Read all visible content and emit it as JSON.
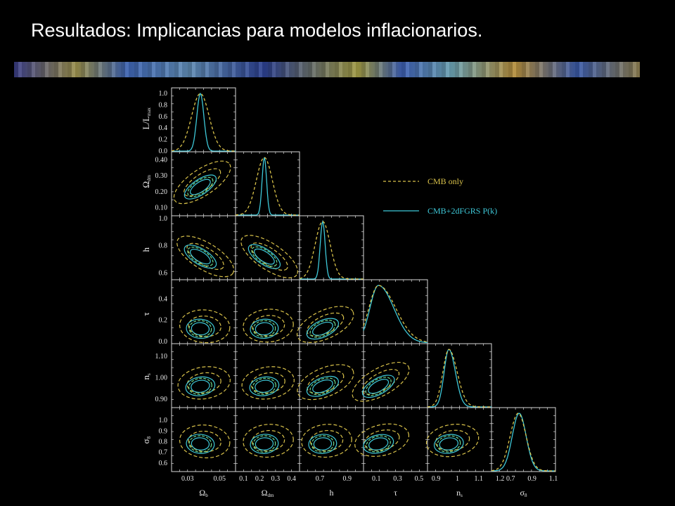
{
  "slide": {
    "title": "Resultados: Implicancias para modelos inflacionarios."
  },
  "colors": {
    "background": "#000000",
    "cmb_only": "#d9c24a",
    "cmb_2df": "#3ec8d8",
    "cmb_2df_inner": "#6fdc8c",
    "axes": "#d8d8d8"
  },
  "chart_data": {
    "type": "corner-plot",
    "title": "",
    "parameters": [
      {
        "label": "Ω_b",
        "label_main": "Ω",
        "label_sub": "b",
        "range": [
          0.02,
          0.06
        ],
        "ticks": [
          0.03,
          0.04,
          0.05
        ],
        "tick_labels": [
          "0.03",
          "",
          "0.05"
        ]
      },
      {
        "label": "Ω_dm",
        "label_main": "Ω",
        "label_sub": "dm",
        "range": [
          0.05,
          0.45
        ],
        "ticks": [
          0.1,
          0.2,
          0.3,
          0.4
        ],
        "tick_labels": [
          "0.1",
          "0.2",
          "0.3",
          "0.4"
        ],
        "y_ticks": [
          0.1,
          0.2,
          0.3,
          0.4
        ],
        "y_tick_labels": [
          "0.10",
          "0.20",
          "0.30",
          "0.40"
        ]
      },
      {
        "label": "h",
        "label_main": "h",
        "label_sub": "",
        "range": [
          0.55,
          1.02
        ],
        "ticks": [
          0.6,
          0.8,
          1.0
        ],
        "tick_labels": [
          "0.7",
          "0.9"
        ],
        "x_ticks": [
          0.7,
          0.9
        ],
        "y_tick_labels": [
          "0.6",
          "0.8",
          "1.0"
        ]
      },
      {
        "label": "τ",
        "label_main": "τ",
        "label_sub": "",
        "range": [
          -0.02,
          0.58
        ],
        "ticks": [
          0.0,
          0.2,
          0.4
        ],
        "tick_labels": [
          "0.0",
          "0.2",
          "0.4"
        ],
        "x_ticks": [
          0.1,
          0.3,
          0.5
        ],
        "x_tick_labels": [
          "0.1",
          "0.3",
          "0.5"
        ]
      },
      {
        "label": "n_s",
        "label_main": "n",
        "label_sub": "s",
        "range": [
          0.86,
          1.16
        ],
        "ticks": [
          0.9,
          1.0,
          1.1
        ],
        "tick_labels": [
          "0.90",
          "1.00",
          "1.10"
        ],
        "x_ticks": [
          0.9,
          1.0,
          1.1,
          1.2
        ],
        "x_tick_labels": [
          "0.9",
          "1",
          "1.1",
          "1.2"
        ]
      },
      {
        "label": "σ_8",
        "label_main": "σ",
        "label_sub": "8",
        "range": [
          0.52,
          1.12
        ],
        "ticks": [
          0.6,
          0.7,
          0.8,
          0.9,
          1.0
        ],
        "tick_labels": [
          "0.6",
          "0.7",
          "0.8",
          "0.9",
          "1.0"
        ],
        "x_ticks": [
          0.7,
          0.9,
          1.1
        ],
        "x_tick_labels": [
          "0.7",
          "0.9",
          "1.1"
        ]
      }
    ],
    "diagonal_ylabel": "L/L_max",
    "diagonal_ylabel_main": "L/L",
    "diagonal_ylabel_sub": "max",
    "diagonal_ticks": [
      "0.0",
      "0.2",
      "0.4",
      "0.6",
      "0.8",
      "1.0"
    ],
    "legend": {
      "placement": "top-right",
      "entries": [
        {
          "name": "CMB only",
          "style": "dashed"
        },
        {
          "name": "CMB+2dFGRS P(k)",
          "style": "solid"
        }
      ]
    },
    "series": [
      {
        "name": "CMB only",
        "peaks": [
          0.038,
          0.23,
          0.72,
          0.12,
          0.96,
          0.77
        ],
        "widths": [
          0.0055,
          0.05,
          0.055,
          0.09,
          0.028,
          0.075
        ]
      },
      {
        "name": "CMB+2dFGRS P(k)",
        "peaks": [
          0.038,
          0.23,
          0.72,
          0.12,
          0.96,
          0.78
        ],
        "widths": [
          0.0022,
          0.014,
          0.018,
          0.08,
          0.022,
          0.065
        ]
      }
    ]
  }
}
